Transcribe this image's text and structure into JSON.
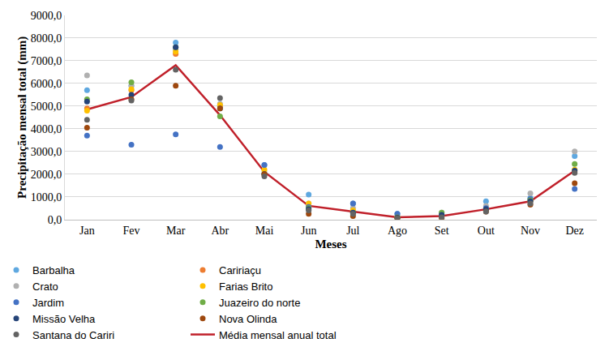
{
  "chart_data": {
    "type": "scatter",
    "x_label": "Meses",
    "y_label": "Precipitação mensal total (mm)",
    "categories": [
      "Jan",
      "Fev",
      "Mar",
      "Abr",
      "Mai",
      "Jun",
      "Jul",
      "Ago",
      "Set",
      "Out",
      "Nov",
      "Dez"
    ],
    "ylim": [
      0,
      9000
    ],
    "yticks": [
      {
        "value": 0,
        "label": "0,0"
      },
      {
        "value": 1000,
        "label": "1000,0"
      },
      {
        "value": 2000,
        "label": "2000,0"
      },
      {
        "value": 3000,
        "label": "3000,0"
      },
      {
        "value": 4000,
        "label": "4000,0"
      },
      {
        "value": 5000,
        "label": "5000,0"
      },
      {
        "value": 6000,
        "label": "6000,0"
      },
      {
        "value": 7000,
        "label": "7000,0"
      },
      {
        "value": 8000,
        "label": "8000,0"
      },
      {
        "value": 9000,
        "label": "9000,0"
      }
    ],
    "grid": true,
    "legend": "bottom",
    "series": [
      {
        "name": "Barbalha",
        "color": "#5fa8e0",
        "type": "scatter",
        "marker": "circle",
        "values": [
          5700,
          5900,
          7800,
          5000,
          2400,
          1100,
          700,
          250,
          200,
          800,
          950,
          2800
        ]
      },
      {
        "name": "Caririaçu",
        "color": "#ed7d31",
        "type": "scatter",
        "marker": "circle",
        "values": [
          4900,
          5700,
          7300,
          5000,
          2000,
          600,
          350,
          100,
          150,
          500,
          800,
          2100
        ]
      },
      {
        "name": "Crato",
        "color": "#b0b0b0",
        "type": "scatter",
        "marker": "circle",
        "values": [
          6350,
          5900,
          7500,
          5100,
          2100,
          700,
          500,
          150,
          300,
          600,
          1150,
          3000
        ]
      },
      {
        "name": "Farias Brito",
        "color": "#ffc000",
        "type": "scatter",
        "marker": "circle",
        "values": [
          4800,
          5750,
          7400,
          5050,
          2200,
          700,
          400,
          100,
          150,
          450,
          850,
          2200
        ]
      },
      {
        "name": "Jardim",
        "color": "#4472c4",
        "type": "scatter",
        "marker": "circle",
        "values": [
          3700,
          3300,
          3750,
          3200,
          2400,
          550,
          700,
          250,
          150,
          500,
          900,
          1350
        ]
      },
      {
        "name": "Juazeiro do norte",
        "color": "#70ad47",
        "type": "scatter",
        "marker": "circle",
        "values": [
          5300,
          6050,
          7600,
          4550,
          2000,
          500,
          300,
          100,
          300,
          400,
          850,
          2450
        ]
      },
      {
        "name": "Missão Velha",
        "color": "#264478",
        "type": "scatter",
        "marker": "circle",
        "values": [
          5200,
          5500,
          7600,
          4900,
          2000,
          450,
          300,
          80,
          200,
          450,
          800,
          2150
        ]
      },
      {
        "name": "Nova Olinda",
        "color": "#9e480e",
        "type": "scatter",
        "marker": "circle",
        "values": [
          4050,
          5300,
          5900,
          4900,
          2000,
          250,
          150,
          50,
          50,
          350,
          650,
          1600
        ]
      },
      {
        "name": "Santana do Cariri",
        "color": "#636363",
        "type": "scatter",
        "marker": "circle",
        "values": [
          4400,
          5250,
          6600,
          5350,
          1900,
          400,
          250,
          50,
          100,
          350,
          700,
          2050
        ]
      },
      {
        "name": "Média mensal anual total",
        "color": "#c0202a",
        "type": "line",
        "line_style": "solid",
        "values": [
          4850,
          5400,
          6800,
          4600,
          2100,
          600,
          350,
          100,
          150,
          450,
          800,
          2150
        ]
      }
    ]
  }
}
